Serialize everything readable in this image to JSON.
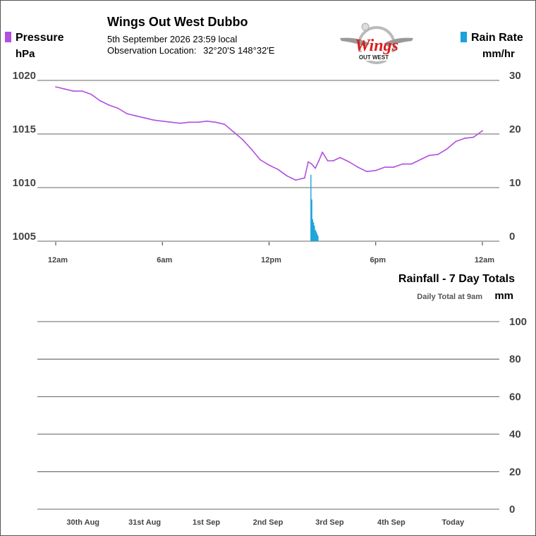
{
  "header": {
    "title": "Wings Out West Dubbo",
    "datetime": "5th September 2026  23:59 local",
    "location_label": "Observation Location:",
    "location_value": "32°20'S 148°32'E"
  },
  "logo": {
    "text": "Wings",
    "subtext": "OUT WEST"
  },
  "legend": {
    "pressure": {
      "label": "Pressure",
      "unit": "hPa",
      "color": "#b04fe0"
    },
    "rain_rate": {
      "label": "Rain Rate",
      "unit": "mm/hr",
      "color": "#1aa3d9"
    }
  },
  "rainfall": {
    "title": "Rainfall - 7 Day Totals",
    "subtitle": "Daily Total at 9am",
    "unit": "mm"
  },
  "chart_data": [
    {
      "type": "line",
      "title": "",
      "x_tick_labels": [
        "12am",
        "6am",
        "12pm",
        "6pm",
        "12am"
      ],
      "x_ticks_hours": [
        0,
        6,
        12,
        18,
        24
      ],
      "xlim_hours": [
        0,
        24
      ],
      "y_left": {
        "label": "Pressure hPa",
        "ticks": [
          "1020",
          "1015",
          "1010",
          "1005"
        ],
        "lim": [
          1005,
          1020
        ]
      },
      "y_right": {
        "label": "Rain Rate mm/hr",
        "ticks": [
          "30",
          "20",
          "10",
          "0"
        ],
        "lim": [
          0,
          30
        ]
      },
      "series": [
        {
          "name": "Pressure",
          "color": "#b04fe0",
          "x_hours": [
            0,
            0.5,
            1,
            1.5,
            2,
            2.5,
            3,
            3.5,
            4,
            4.5,
            5,
            5.5,
            6,
            6.5,
            7,
            7.5,
            8,
            8.5,
            9,
            9.5,
            10,
            10.5,
            11,
            11.5,
            12,
            12.5,
            13,
            13.5,
            14,
            14.2,
            14.4,
            14.6,
            14.8,
            15,
            15.3,
            15.6,
            16,
            16.5,
            17,
            17.5,
            18,
            18.5,
            19,
            19.5,
            20,
            20.5,
            21,
            21.5,
            22,
            22.5,
            23,
            23.5,
            24
          ],
          "values": [
            1019.4,
            1019.2,
            1019.0,
            1019.0,
            1018.7,
            1018.1,
            1017.7,
            1017.4,
            1016.9,
            1016.7,
            1016.5,
            1016.3,
            1016.2,
            1016.1,
            1016.0,
            1016.1,
            1016.1,
            1016.2,
            1016.1,
            1015.9,
            1015.2,
            1014.5,
            1013.6,
            1012.6,
            1012.1,
            1011.7,
            1011.1,
            1010.7,
            1010.9,
            1012.4,
            1012.2,
            1011.8,
            1012.5,
            1013.3,
            1012.5,
            1012.5,
            1012.8,
            1012.4,
            1011.9,
            1011.5,
            1011.6,
            1011.9,
            1011.9,
            1012.2,
            1012.2,
            1012.6,
            1013.0,
            1013.1,
            1013.6,
            1014.3,
            1014.6,
            1014.7,
            1015.3
          ]
        },
        {
          "name": "Rain Rate",
          "color": "#1aa3d9",
          "type": "bar",
          "x_hours": [
            14.35,
            14.4,
            14.45,
            14.5,
            14.55,
            14.6,
            14.65,
            14.7,
            14.75
          ],
          "values": [
            12.4,
            7.8,
            4.1,
            3.5,
            2.9,
            2.1,
            1.8,
            1.4,
            1.0
          ]
        }
      ]
    },
    {
      "type": "bar",
      "title": "Rainfall - 7 Day Totals",
      "categories": [
        "30th Aug",
        "31st Aug",
        "1st Sep",
        "2nd Sep",
        "3rd Sep",
        "4th Sep",
        "Today"
      ],
      "values": [
        0,
        0,
        0,
        0,
        0,
        0,
        0
      ],
      "ylabel": "mm",
      "y_ticks": [
        "100",
        "80",
        "60",
        "40",
        "20",
        "0"
      ],
      "ylim": [
        0,
        100
      ]
    }
  ]
}
